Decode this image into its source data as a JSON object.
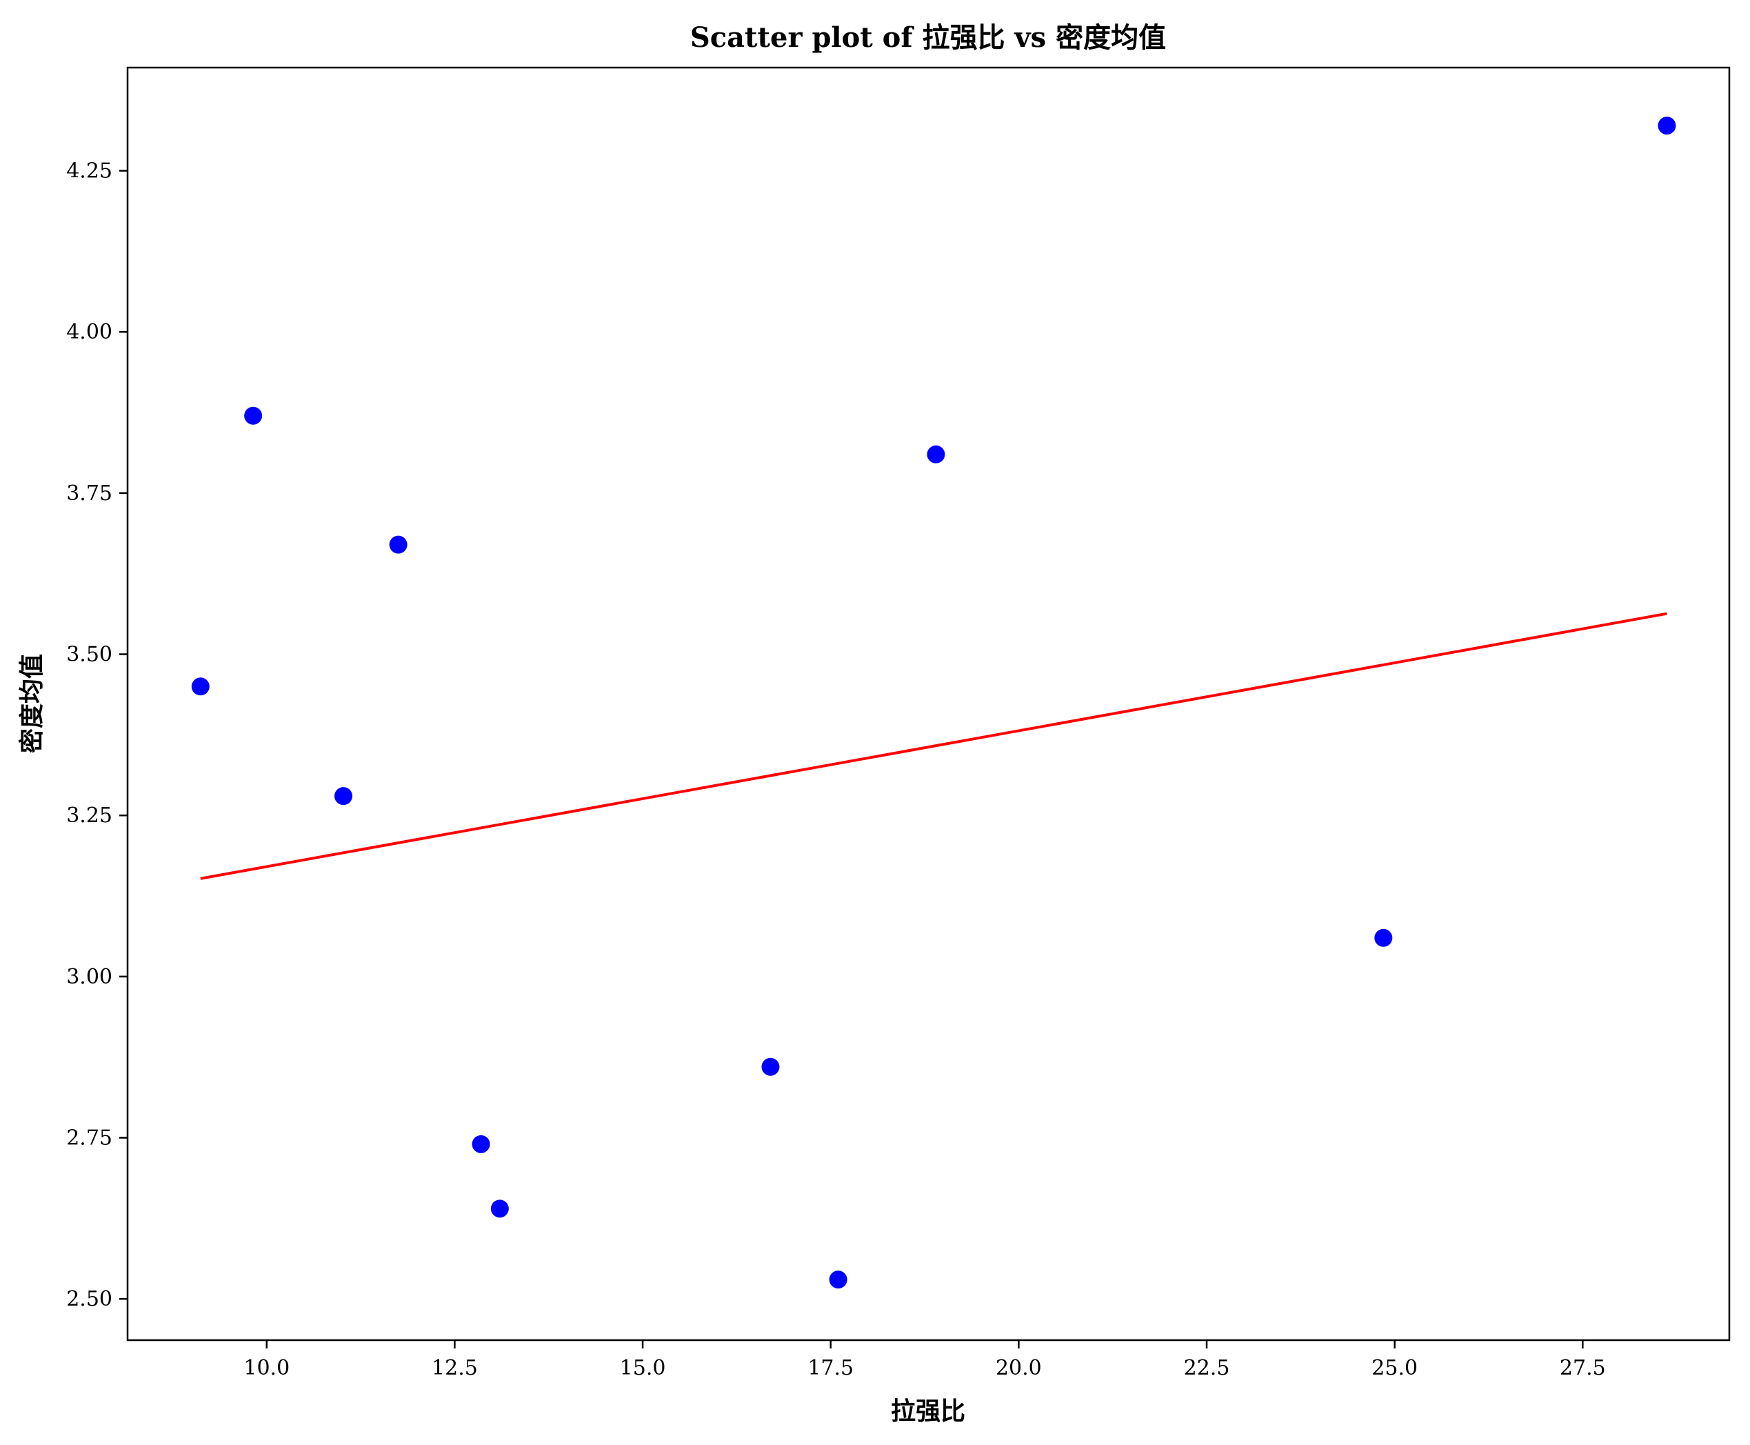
{
  "chart_data": {
    "type": "scatter",
    "title": "Scatter plot of 拉强比 vs 密度均值",
    "xlabel": "拉强比",
    "ylabel": "密度均值",
    "xlim": [
      8.15,
      29.45
    ],
    "ylim": [
      2.436,
      4.41
    ],
    "xticks": [
      "10.0",
      "12.5",
      "15.0",
      "17.5",
      "20.0",
      "22.5",
      "25.0",
      "27.5"
    ],
    "yticks": [
      "2.50",
      "2.75",
      "3.00",
      "3.25",
      "3.50",
      "3.75",
      "4.00",
      "4.25"
    ],
    "grid": false,
    "series": [
      {
        "type": "scatter",
        "color": "#0000ff",
        "x": [
          9.12,
          9.82,
          11.02,
          11.75,
          12.85,
          13.1,
          16.7,
          17.6,
          18.9,
          24.85,
          28.62
        ],
        "y": [
          3.45,
          3.87,
          3.28,
          3.67,
          2.74,
          2.64,
          2.86,
          2.53,
          3.81,
          3.06,
          4.32
        ]
      },
      {
        "type": "line",
        "color": "#ff0000",
        "x": [
          9.12,
          28.62
        ],
        "y": [
          3.152,
          3.563
        ]
      }
    ]
  }
}
